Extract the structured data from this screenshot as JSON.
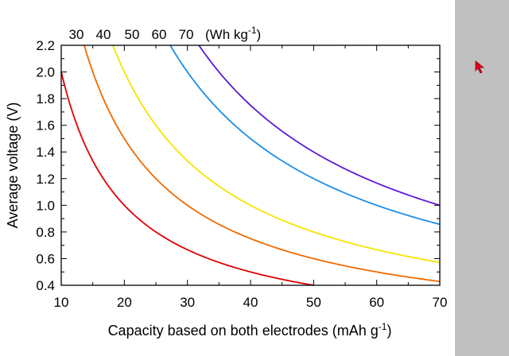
{
  "colors": {
    "background_outer": "#c0c0c0",
    "canvas": "#ffffff",
    "cursor": "#e0001b"
  },
  "cursor": {
    "icon": "arrow-cursor-icon"
  },
  "chart_data": {
    "type": "line",
    "title": "",
    "xlabel_main": "Capacity based on both electrodes (mAh g",
    "xlabel_sup": "-1",
    "xlabel_close": ")",
    "ylabel": "Average voltage (V)",
    "xlim": [
      10,
      70
    ],
    "ylim": [
      0.4,
      2.2
    ],
    "x_ticks": [
      10,
      20,
      30,
      40,
      50,
      60,
      70
    ],
    "y_ticks": [
      "0.4",
      "0.6",
      "0.8",
      "1.0",
      "1.2",
      "1.4",
      "1.6",
      "1.8",
      "2.0",
      "2.2"
    ],
    "grid": false,
    "relation": "energy_density = voltage * capacity",
    "top_labels": [
      "30",
      "40",
      "50",
      "60",
      "70"
    ],
    "top_unit_main": "(Wh kg",
    "top_unit_sup": "-1",
    "top_unit_close": ")",
    "series": [
      {
        "energy_density": 20,
        "color": "#e00000",
        "x": [
          10,
          12,
          15,
          20,
          25,
          30,
          35,
          40,
          45,
          50
        ],
        "y": [
          2.0,
          1.667,
          1.333,
          1.0,
          0.8,
          0.667,
          0.571,
          0.5,
          0.444,
          0.4
        ]
      },
      {
        "energy_density": 30,
        "color": "#f06a00",
        "x": [
          13.6,
          15,
          20,
          25,
          30,
          35,
          40,
          45,
          50,
          55,
          60,
          65,
          70
        ],
        "y": [
          2.2,
          2.0,
          1.5,
          1.2,
          1.0,
          0.857,
          0.75,
          0.667,
          0.6,
          0.545,
          0.5,
          0.462,
          0.429
        ]
      },
      {
        "energy_density": 40,
        "color": "#f5e400",
        "x": [
          18.2,
          20,
          25,
          30,
          35,
          40,
          45,
          50,
          55,
          60,
          65,
          70
        ],
        "y": [
          2.2,
          2.0,
          1.6,
          1.333,
          1.143,
          1.0,
          0.889,
          0.8,
          0.727,
          0.667,
          0.615,
          0.571
        ]
      },
      {
        "energy_density": 60,
        "color": "#1a8fe8",
        "x": [
          27.3,
          30,
          35,
          40,
          45,
          50,
          55,
          60,
          65,
          70
        ],
        "y": [
          2.2,
          2.0,
          1.714,
          1.5,
          1.333,
          1.2,
          1.091,
          1.0,
          0.923,
          0.857
        ]
      },
      {
        "energy_density": 70,
        "color": "#5a1ad8",
        "x": [
          31.8,
          35,
          40,
          45,
          50,
          55,
          60,
          65,
          70
        ],
        "y": [
          2.2,
          2.0,
          1.75,
          1.556,
          1.4,
          1.273,
          1.167,
          1.077,
          1.0
        ]
      }
    ]
  }
}
